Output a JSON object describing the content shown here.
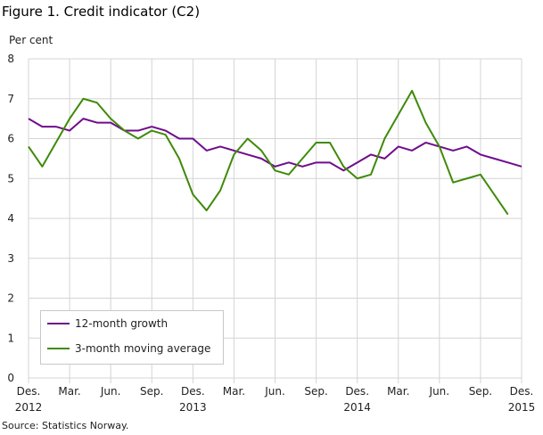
{
  "chart_data": {
    "type": "line",
    "title": "Figure 1. Credit indicator (C2)",
    "ylabel": "Per cent",
    "xlabel": "",
    "source": "Source: Statistics Norway.",
    "ylim": [
      0,
      8
    ],
    "yticks": [
      "0",
      "1",
      "2",
      "3",
      "4",
      "5",
      "6",
      "7",
      "8"
    ],
    "xticks": [
      {
        "label": "Des.",
        "sub": "2012",
        "month": 0
      },
      {
        "label": "Mar.",
        "sub": "",
        "month": 3
      },
      {
        "label": "Jun.",
        "sub": "",
        "month": 6
      },
      {
        "label": "Sep.",
        "sub": "",
        "month": 9
      },
      {
        "label": "Des.",
        "sub": "2013",
        "month": 12
      },
      {
        "label": "Mar.",
        "sub": "",
        "month": 15
      },
      {
        "label": "Jun.",
        "sub": "",
        "month": 18
      },
      {
        "label": "Sep.",
        "sub": "",
        "month": 21
      },
      {
        "label": "Des.",
        "sub": "2014",
        "month": 24
      },
      {
        "label": "Mar.",
        "sub": "",
        "month": 27
      },
      {
        "label": "Jun.",
        "sub": "",
        "month": 30
      },
      {
        "label": "Sep.",
        "sub": "",
        "month": 33
      },
      {
        "label": "Des.",
        "sub": "2015",
        "month": 36
      }
    ],
    "grid": true,
    "legend_position": "bottom-left",
    "series": [
      {
        "name": "12-month growth",
        "color": "#6f0c8b",
        "values": [
          6.5,
          6.3,
          6.3,
          6.2,
          6.5,
          6.4,
          6.4,
          6.2,
          6.2,
          6.3,
          6.2,
          6.0,
          6.0,
          5.7,
          5.8,
          5.7,
          5.6,
          5.5,
          5.3,
          5.4,
          5.3,
          5.4,
          5.4,
          5.2,
          5.4,
          5.6,
          5.5,
          5.8,
          5.7,
          5.9,
          5.8,
          5.7,
          5.8,
          5.6,
          5.5,
          5.4,
          5.3
        ]
      },
      {
        "name": "3-month moving average",
        "color": "#3f8a0a",
        "values": [
          5.8,
          5.3,
          5.9,
          6.5,
          7.0,
          6.9,
          6.5,
          6.2,
          6.0,
          6.2,
          6.1,
          5.5,
          4.6,
          4.2,
          4.7,
          5.6,
          6.0,
          5.7,
          5.2,
          5.1,
          5.5,
          5.9,
          5.9,
          5.3,
          5.0,
          5.1,
          6.0,
          6.6,
          7.2,
          6.4,
          5.8,
          4.9,
          5.0,
          5.1,
          4.6,
          4.1,
          null
        ]
      }
    ]
  }
}
